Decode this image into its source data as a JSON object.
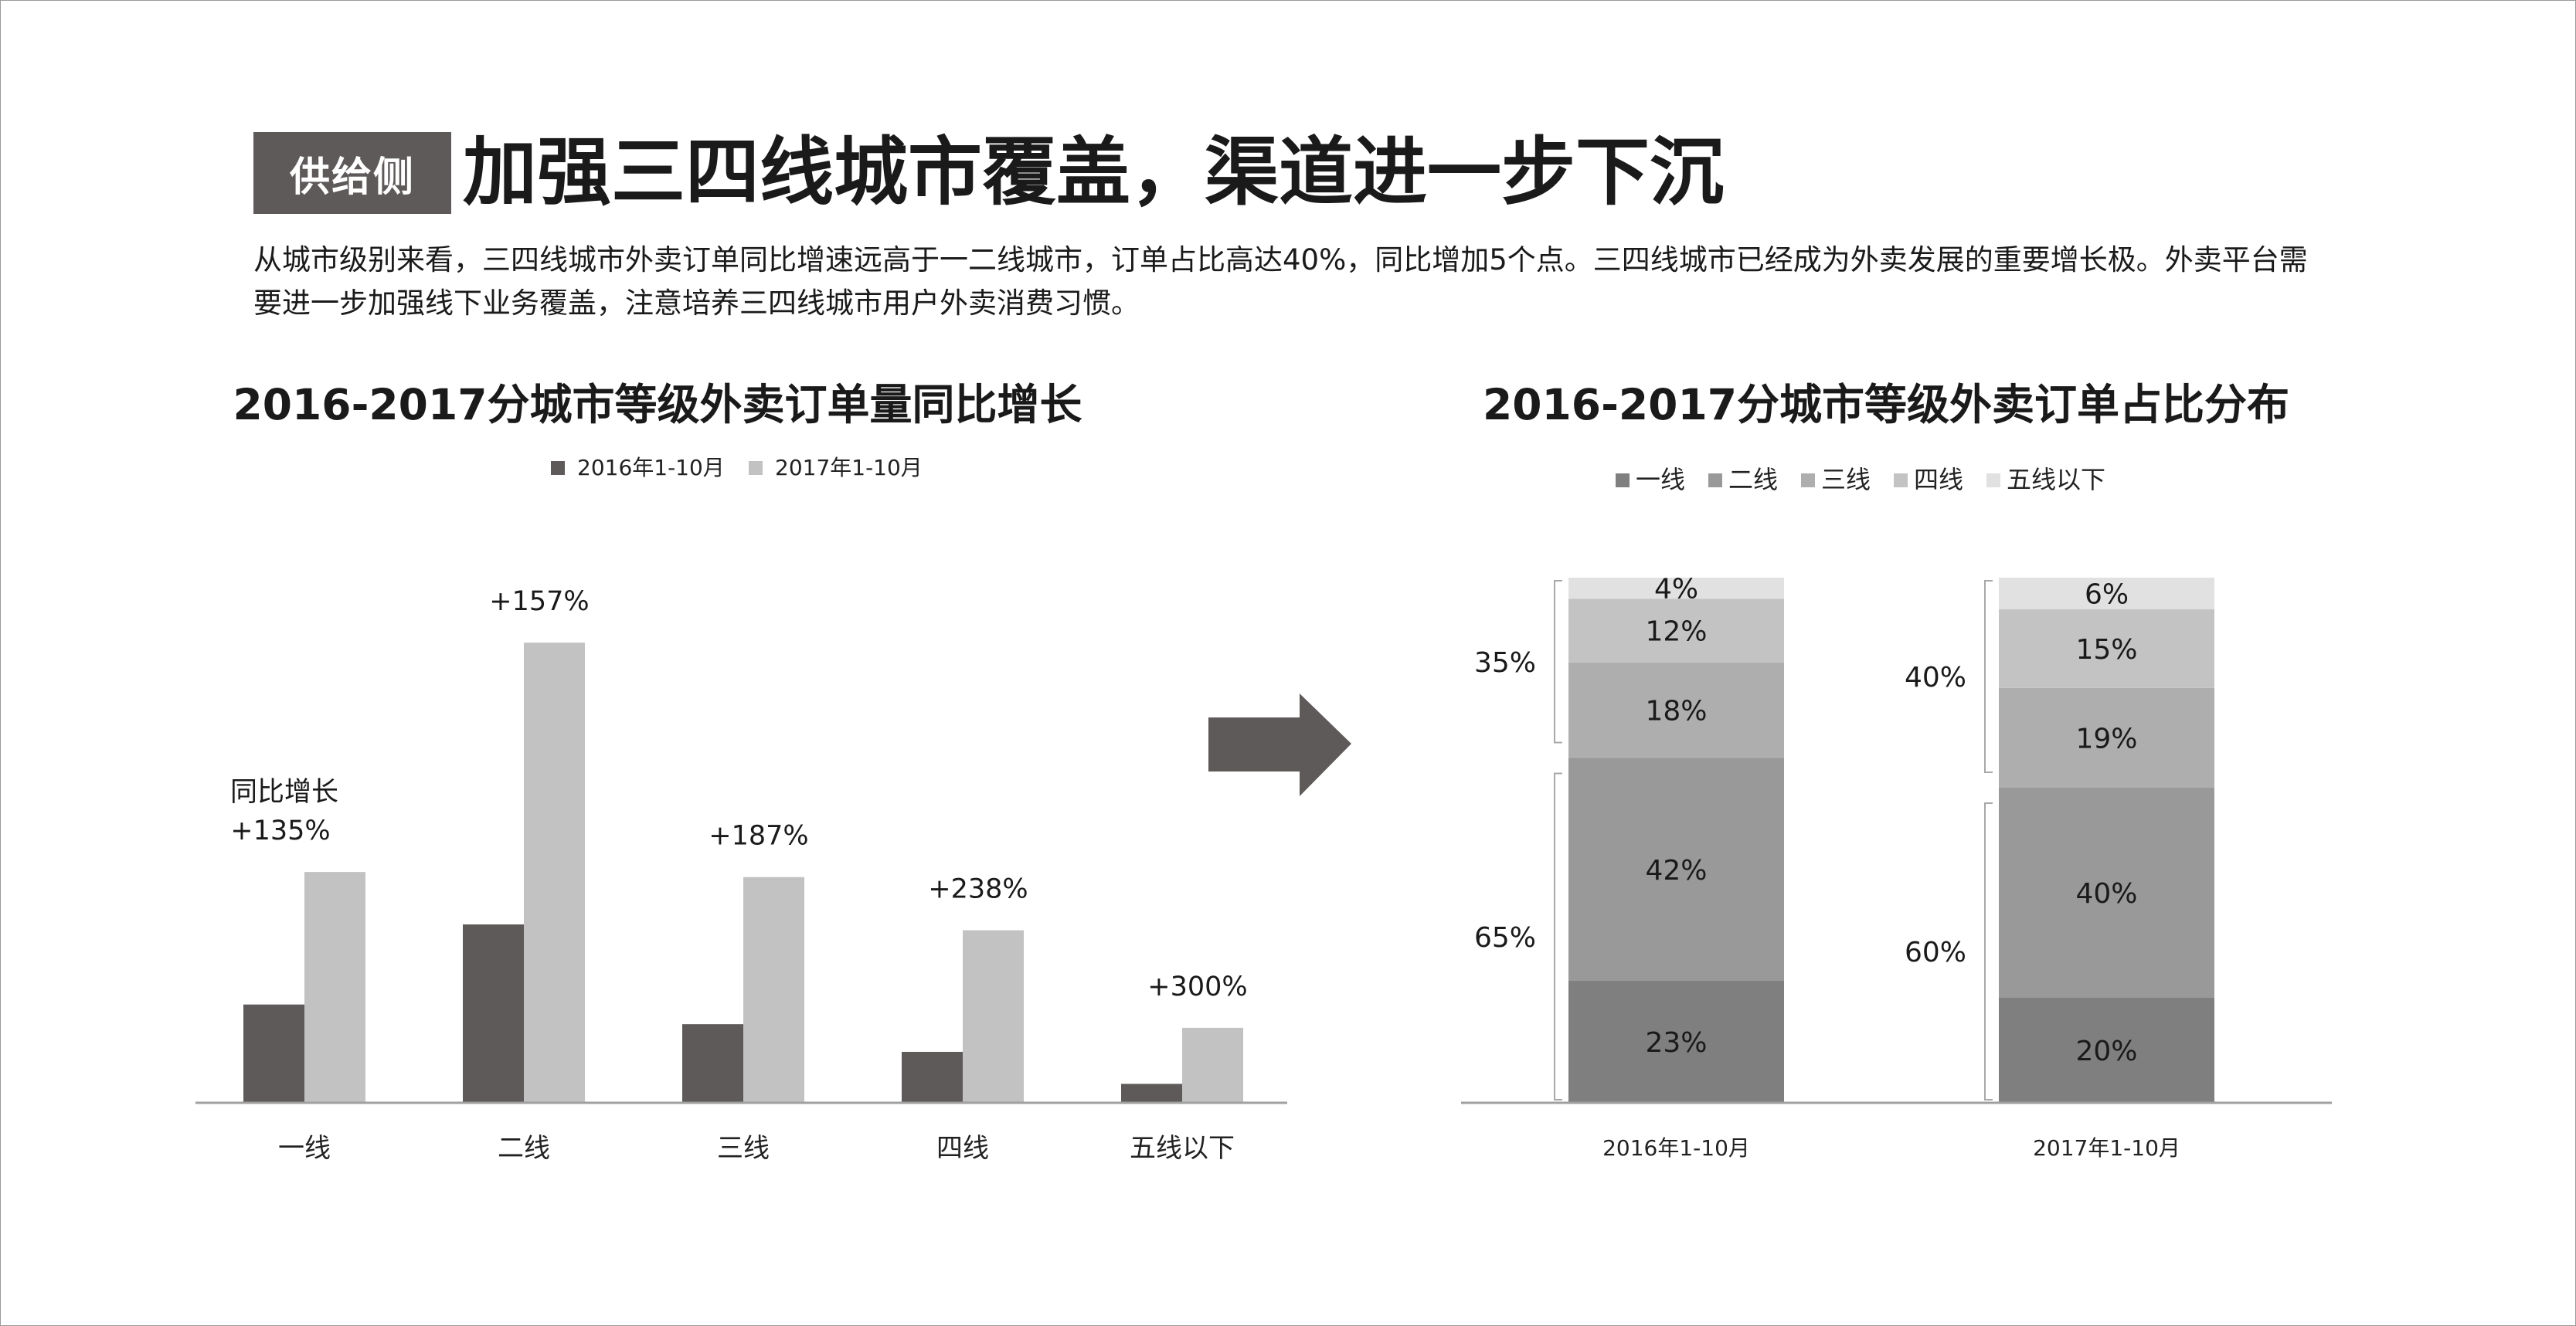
{
  "header": {
    "tag": "供给侧",
    "title": "加强三四线城市覆盖，渠道进一步下沉",
    "summary": "从城市级别来看，三四线城市外卖订单同比增速远高于一二线城市，订单占比高达40%，同比增加5个点。三四线城市已经成为外卖发展的重要增长极。外卖平台需要进一步加强线下业务覆盖，注意培养三四线城市用户外卖消费习惯。"
  },
  "colors": {
    "tag_bg": "#5f5a5a",
    "series_2016": "#5f5a5a",
    "series_2017": "#c2c2c2",
    "arrow": "#5f5a5a",
    "tier1": "#7f7f7f",
    "tier2": "#999999",
    "tier3": "#aeaeae",
    "tier4": "#c3c3c3",
    "tier5": "#e1e1e1"
  },
  "icons": {
    "arrow": "right-arrow-icon"
  },
  "chart_data": [
    {
      "type": "bar",
      "title": "2016-2017分城市等级外卖订单量同比增长",
      "legend_position": "top-center",
      "categories": [
        "一线",
        "二线",
        "三线",
        "四线",
        "五线以下"
      ],
      "series": [
        {
          "name": "2016年1-10月",
          "values": [
            135,
            245,
            108,
            70,
            26
          ]
        },
        {
          "name": "2017年1-10月",
          "values": [
            317,
            632,
            310,
            237,
            103
          ]
        }
      ],
      "annotation_title": "同比增长",
      "growth_labels": [
        "+135%",
        "+157%",
        "+187%",
        "+238%",
        "+300%"
      ],
      "ylim": [
        0,
        700
      ],
      "grid": false
    },
    {
      "type": "bar",
      "stacked": true,
      "title": "2016-2017分城市等级外卖订单占比分布",
      "legend_position": "top-center",
      "categories": [
        "2016年1-10月",
        "2017年1-10月"
      ],
      "series": [
        {
          "name": "一线",
          "values": [
            23,
            20
          ],
          "labels": [
            "23%",
            "20%"
          ]
        },
        {
          "name": "二线",
          "values": [
            42,
            40
          ],
          "labels": [
            "42%",
            "40%"
          ]
        },
        {
          "name": "三线",
          "values": [
            18,
            19
          ],
          "labels": [
            "18%",
            "19%"
          ]
        },
        {
          "name": "四线",
          "values": [
            12,
            15
          ],
          "labels": [
            "12%",
            "15%"
          ]
        },
        {
          "name": "五线以下",
          "values": [
            4,
            6
          ],
          "labels": [
            "4%",
            "6%"
          ]
        }
      ],
      "group_labels": [
        {
          "upper": "35%",
          "lower": "65%"
        },
        {
          "upper": "40%",
          "lower": "60%"
        }
      ],
      "ylim": [
        0,
        100
      ],
      "grid": false
    }
  ]
}
